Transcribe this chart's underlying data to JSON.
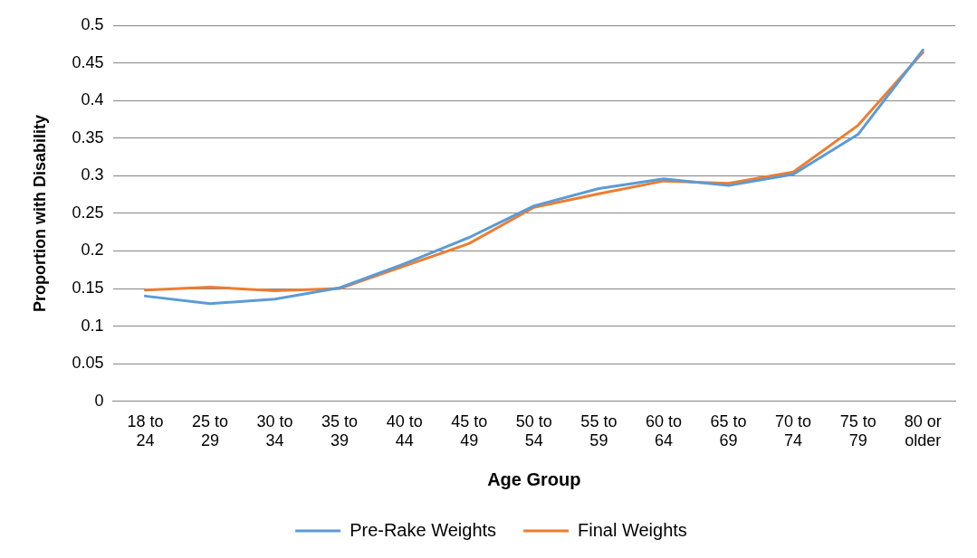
{
  "chart_data": {
    "type": "line",
    "xlabel": "Age Group",
    "ylabel": "Proportion with Disability",
    "categories": [
      "18 to 24",
      "25 to 29",
      "30 to 34",
      "35 to 39",
      "40 to 44",
      "45 to 49",
      "50 to 54",
      "55 to 59",
      "60 to 64",
      "65 to 69",
      "70 to 74",
      "75 to 79",
      "80 or older"
    ],
    "series": [
      {
        "name": "Pre-Rake Weights",
        "color": "#5b9bd5",
        "values": [
          0.14,
          0.13,
          0.136,
          0.151,
          0.183,
          0.218,
          0.26,
          0.283,
          0.296,
          0.287,
          0.302,
          0.355,
          0.467
        ]
      },
      {
        "name": "Final Weights",
        "color": "#ed7d31",
        "values": [
          0.148,
          0.152,
          0.147,
          0.15,
          0.18,
          0.21,
          0.258,
          0.276,
          0.293,
          0.29,
          0.305,
          0.367,
          0.464
        ]
      }
    ],
    "ylim": [
      0,
      0.5
    ],
    "yticks": [
      0,
      0.05,
      0.1,
      0.15,
      0.2,
      0.25,
      0.3,
      0.35,
      0.4,
      0.45,
      0.5
    ],
    "grid": "y",
    "legend": "bottom",
    "marker": "none",
    "line_style": "solid"
  }
}
